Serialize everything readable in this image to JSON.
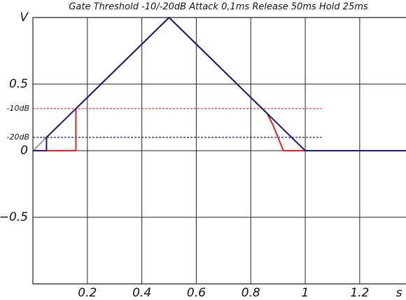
{
  "chart_data": {
    "type": "line",
    "title": "Gate Threshold -10/-20dB Attack 0,1ms  Release 50ms Hold 25ms",
    "x_label": "s",
    "xlim": [
      0,
      1.37
    ],
    "ylim": [
      -1,
      1
    ],
    "xticks": [
      0.2,
      0.4,
      0.6,
      0.8,
      1.0,
      1.2
    ],
    "yticks": [
      {
        "value": 1,
        "label": "V"
      },
      0.5,
      0,
      {
        "value": -0.5,
        "label": "−0.5"
      }
    ],
    "grid": true,
    "thresholds": [
      {
        "label": "-10dB",
        "value": 0.316,
        "color": "#e8201c",
        "x": [
          0,
          1.06
        ]
      },
      {
        "label": "-20dB",
        "value": 0.1,
        "color": "#1a1a8c",
        "x": [
          0,
          1.06
        ]
      }
    ],
    "series": [
      {
        "color": "#9a9aa8",
        "x": [
          0,
          0.05
        ],
        "values": [
          0,
          0.1
        ]
      },
      {
        "color": "#e8201c",
        "x": [
          0.05,
          0.158,
          0.158,
          0.5,
          0.86,
          0.88,
          0.9,
          0.92,
          1.0
        ],
        "values": [
          0,
          0,
          0.316,
          1,
          0.28,
          0.2,
          0.1,
          0,
          0
        ]
      },
      {
        "color": "#1a1a78",
        "x": [
          0,
          0.05,
          0.05,
          0.5,
          1.0,
          1.37
        ],
        "values": [
          0,
          0,
          0.1,
          1,
          0,
          0
        ]
      }
    ]
  }
}
